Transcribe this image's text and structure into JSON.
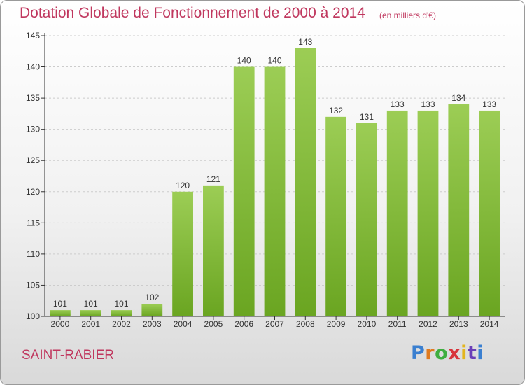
{
  "title": "Dotation Globale de Fonctionnement de 2000 à 2014",
  "subtitle": "(en milliers d'€)",
  "commune": "SAINT-RABIER",
  "logo": {
    "text": "Proxiti",
    "colors": [
      "#3a7fd0",
      "#e07a1e",
      "#3fae3f",
      "#d8333a",
      "#e3b51e",
      "#6a3fb8"
    ]
  },
  "colors": {
    "bar_top": "#9ccd55",
    "bar_bottom": "#6aa521",
    "title": "#c0375e",
    "grid": "#cccccc"
  },
  "chart_data": {
    "type": "bar",
    "title": "Dotation Globale de Fonctionnement de 2000 à 2014",
    "xlabel": "",
    "ylabel": "",
    "ylim": [
      100,
      145
    ],
    "yticks": [
      100,
      105,
      110,
      115,
      120,
      125,
      130,
      135,
      140,
      145
    ],
    "grid": true,
    "categories": [
      "2000",
      "2001",
      "2002",
      "2003",
      "2004",
      "2005",
      "2006",
      "2007",
      "2008",
      "2009",
      "2010",
      "2011",
      "2012",
      "2013",
      "2014"
    ],
    "values": [
      101,
      101,
      101,
      102,
      120,
      121,
      140,
      140,
      143,
      132,
      131,
      133,
      133,
      134,
      133
    ]
  }
}
